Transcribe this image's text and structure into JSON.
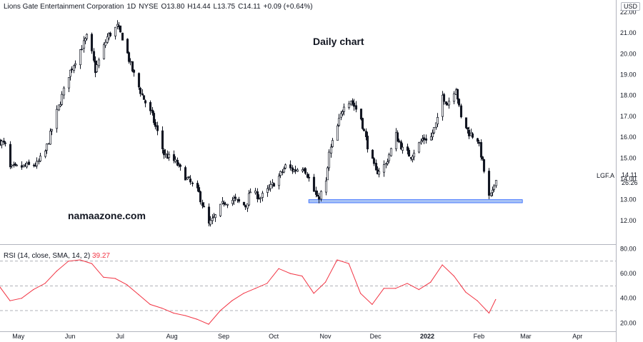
{
  "header": {
    "name": "Lions Gate Entertainment Corporation",
    "interval": "1D",
    "exchange": "NYSE",
    "open": "O13.80",
    "high": "H14.44",
    "low": "L13.75",
    "close": "C14.11",
    "change": "+0.09 (+0.64%)"
  },
  "currency": "USD",
  "title": "Daily chart",
  "watermark": "namaazone.com",
  "symbol_label": "LGF.A",
  "last_price": "14.11",
  "countdown": "26:26",
  "rsi_header": {
    "label": "RSI (14, close, SMA, 14, 2)",
    "value": "39.27"
  },
  "colors": {
    "candle": "#131722",
    "rsi": "#f23645",
    "support_zone": "#a9c3f5",
    "support_border": "#2962ff"
  },
  "chart_data": [
    {
      "type": "candlestick",
      "title": "",
      "ylim": [
        11,
        22
      ],
      "y_ticks": [
        "12.00",
        "13.00",
        "14.00",
        "15.00",
        "16.00",
        "17.00",
        "18.00",
        "19.00",
        "20.00",
        "21.00",
        "22.00"
      ],
      "x_ticks": [
        "May",
        "Jun",
        "Jul",
        "Aug",
        "Sep",
        "Oct",
        "Nov",
        "Dec",
        "2022",
        "Feb",
        "Mar",
        "Apr"
      ],
      "x_range": [
        "2021-04-20",
        "2022-04-24"
      ],
      "support_zone": {
        "from": "2021-10-22",
        "to": "2022-02-27",
        "low": 12.85,
        "high": 13.0
      },
      "close_path": [
        [
          "2021-04-20",
          15.8
        ],
        [
          "2021-04-23",
          15.6
        ],
        [
          "2021-04-26",
          14.5
        ],
        [
          "2021-05-05",
          14.6
        ],
        [
          "2021-05-12",
          14.7
        ],
        [
          "2021-05-17",
          15.3
        ],
        [
          "2021-05-24",
          17.2
        ],
        [
          "2021-05-31",
          19.0
        ],
        [
          "2021-06-07",
          20.2
        ],
        [
          "2021-06-11",
          20.8
        ],
        [
          "2021-06-14",
          20.0
        ],
        [
          "2021-06-16",
          19.2
        ],
        [
          "2021-06-23",
          20.8
        ],
        [
          "2021-06-29",
          21.3
        ],
        [
          "2021-07-02",
          20.8
        ],
        [
          "2021-07-08",
          19.2
        ],
        [
          "2021-07-14",
          18.0
        ],
        [
          "2021-07-20",
          17.0
        ],
        [
          "2021-07-27",
          15.2
        ],
        [
          "2021-08-03",
          14.8
        ],
        [
          "2021-08-10",
          14.0
        ],
        [
          "2021-08-17",
          13.3
        ],
        [
          "2021-08-23",
          11.8
        ],
        [
          "2021-08-27",
          12.2
        ],
        [
          "2021-09-01",
          12.9
        ],
        [
          "2021-09-07",
          13.0
        ],
        [
          "2021-09-14",
          12.7
        ],
        [
          "2021-09-17",
          13.4
        ],
        [
          "2021-09-23",
          13.1
        ],
        [
          "2021-09-28",
          13.5
        ],
        [
          "2021-10-04",
          14.1
        ],
        [
          "2021-10-08",
          14.6
        ],
        [
          "2021-10-13",
          14.4
        ],
        [
          "2021-10-19",
          14.6
        ],
        [
          "2021-10-22",
          14.0
        ],
        [
          "2021-10-27",
          13.0
        ],
        [
          "2021-11-01",
          13.8
        ],
        [
          "2021-11-03",
          15.2
        ],
        [
          "2021-11-08",
          16.5
        ],
        [
          "2021-11-12",
          17.6
        ],
        [
          "2021-11-16",
          17.8
        ],
        [
          "2021-11-22",
          16.9
        ],
        [
          "2021-11-26",
          15.6
        ],
        [
          "2021-12-01",
          14.3
        ],
        [
          "2021-12-07",
          14.7
        ],
        [
          "2021-12-13",
          16.1
        ],
        [
          "2021-12-17",
          15.4
        ],
        [
          "2021-12-22",
          15.1
        ],
        [
          "2021-12-29",
          15.9
        ],
        [
          "2022-01-03",
          16.0
        ],
        [
          "2022-01-07",
          16.8
        ],
        [
          "2022-01-10",
          18.0
        ],
        [
          "2022-01-13",
          17.6
        ],
        [
          "2022-01-18",
          18.4
        ],
        [
          "2022-01-21",
          16.9
        ],
        [
          "2022-01-26",
          16.2
        ],
        [
          "2022-01-31",
          15.9
        ],
        [
          "2022-02-03",
          14.8
        ],
        [
          "2022-02-07",
          13.1
        ],
        [
          "2022-02-09",
          13.3
        ],
        [
          "2022-02-11",
          14.1
        ]
      ]
    },
    {
      "type": "line",
      "title": "RSI (14, close, SMA, 14, 2)",
      "ylim": [
        15,
        82
      ],
      "y_ticks": [
        "20.00",
        "40.00",
        "60.00",
        "80.00"
      ],
      "bands": [
        30,
        50,
        70
      ],
      "x_range": [
        "2021-04-20",
        "2022-04-24"
      ],
      "x": [
        "2021-04-20",
        "2021-04-26",
        "2021-05-03",
        "2021-05-10",
        "2021-05-17",
        "2021-05-24",
        "2021-05-31",
        "2021-06-07",
        "2021-06-14",
        "2021-06-21",
        "2021-06-28",
        "2021-07-05",
        "2021-07-12",
        "2021-07-19",
        "2021-07-26",
        "2021-08-02",
        "2021-08-09",
        "2021-08-16",
        "2021-08-23",
        "2021-08-30",
        "2021-09-06",
        "2021-09-13",
        "2021-09-20",
        "2021-09-27",
        "2021-10-04",
        "2021-10-11",
        "2021-10-18",
        "2021-10-25",
        "2021-11-01",
        "2021-11-08",
        "2021-11-15",
        "2021-11-22",
        "2021-11-29",
        "2021-12-06",
        "2021-12-13",
        "2021-12-20",
        "2021-12-27",
        "2022-01-03",
        "2022-01-10",
        "2022-01-17",
        "2022-01-24",
        "2022-01-31",
        "2022-02-07",
        "2022-02-11"
      ],
      "values": [
        49,
        38,
        40,
        47,
        52,
        62,
        70,
        71,
        68,
        57,
        56,
        51,
        43,
        35,
        32,
        28,
        26,
        23,
        19,
        30,
        38,
        44,
        48,
        52,
        64,
        60,
        58,
        44,
        53,
        71,
        68,
        44,
        35,
        48,
        48,
        52,
        47,
        53,
        67,
        58,
        45,
        38,
        28,
        39
      ]
    }
  ]
}
